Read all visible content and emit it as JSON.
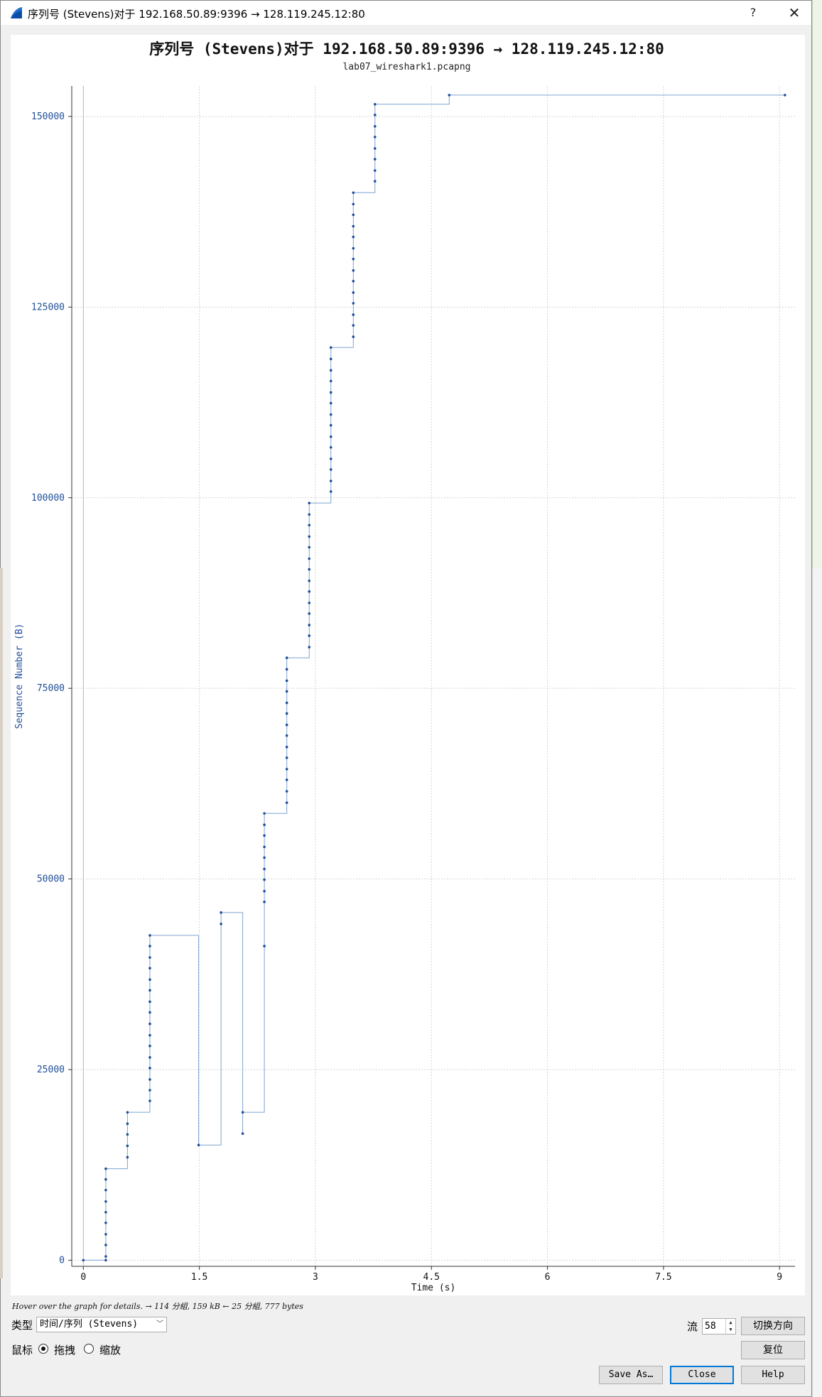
{
  "window": {
    "title": "序列号 (Stevens)对于 192.168.50.89:9396 → 128.119.245.12:80",
    "help_glyph": "?",
    "close_glyph": "✕",
    "icon": "wireshark-fin-icon"
  },
  "chart_data": {
    "type": "line",
    "title": "序列号 (Stevens)对于 192.168.50.89:9396 → 128.119.245.12:80",
    "subtitle": "lab07_wireshark1.pcapng",
    "xlabel": "Time (s)",
    "ylabel": "Sequence Number (B)",
    "xlim": [
      -0.15,
      9.2
    ],
    "ylim": [
      -800,
      154000
    ],
    "x_ticks": [
      0,
      1.5,
      3,
      4.5,
      6,
      7.5,
      9
    ],
    "x_tick_labels": [
      "0",
      "1.5",
      "3",
      "4.5",
      "6",
      "7.5",
      "9"
    ],
    "y_ticks": [
      0,
      25000,
      50000,
      75000,
      100000,
      125000,
      150000
    ],
    "y_tick_labels": [
      "0",
      "25000",
      "50000",
      "75000",
      "100000",
      "125000",
      "150000"
    ],
    "grid": true,
    "series": [
      {
        "color": "#1f4e9a",
        "line_color": "#7fa3d0",
        "style": "stevens-step",
        "points": [
          [
            0.0,
            0
          ],
          [
            0.29,
            0
          ],
          [
            0.29,
            500
          ],
          [
            0.29,
            2000
          ],
          [
            0.29,
            3400
          ],
          [
            0.29,
            4900
          ],
          [
            0.29,
            6300
          ],
          [
            0.29,
            7700
          ],
          [
            0.29,
            9200
          ],
          [
            0.29,
            10600
          ],
          [
            0.29,
            12000
          ],
          [
            0.57,
            13500
          ],
          [
            0.57,
            15000
          ],
          [
            0.57,
            16500
          ],
          [
            0.57,
            17900
          ],
          [
            0.57,
            19400
          ],
          [
            0.86,
            20900
          ],
          [
            0.86,
            22300
          ],
          [
            0.86,
            23700
          ],
          [
            0.86,
            25200
          ],
          [
            0.86,
            26600
          ],
          [
            0.86,
            28100
          ],
          [
            0.86,
            29500
          ],
          [
            0.86,
            31000
          ],
          [
            0.86,
            32500
          ],
          [
            0.86,
            33900
          ],
          [
            0.86,
            35400
          ],
          [
            0.86,
            36800
          ],
          [
            0.86,
            38300
          ],
          [
            0.86,
            39700
          ],
          [
            0.86,
            41200
          ],
          [
            0.86,
            42600
          ],
          [
            1.49,
            15100
          ],
          [
            1.78,
            44100
          ],
          [
            1.78,
            45600
          ],
          [
            2.06,
            16600
          ],
          [
            2.06,
            19400
          ],
          [
            2.34,
            41200
          ],
          [
            2.34,
            47000
          ],
          [
            2.34,
            48400
          ],
          [
            2.34,
            49900
          ],
          [
            2.34,
            51300
          ],
          [
            2.34,
            52800
          ],
          [
            2.34,
            54200
          ],
          [
            2.34,
            55700
          ],
          [
            2.34,
            57100
          ],
          [
            2.34,
            58600
          ],
          [
            2.63,
            60000
          ],
          [
            2.63,
            61500
          ],
          [
            2.63,
            63000
          ],
          [
            2.63,
            64400
          ],
          [
            2.63,
            65900
          ],
          [
            2.63,
            67300
          ],
          [
            2.63,
            68800
          ],
          [
            2.63,
            70200
          ],
          [
            2.63,
            71700
          ],
          [
            2.63,
            73100
          ],
          [
            2.63,
            74600
          ],
          [
            2.63,
            76000
          ],
          [
            2.63,
            77500
          ],
          [
            2.63,
            79000
          ],
          [
            2.92,
            80400
          ],
          [
            2.92,
            81900
          ],
          [
            2.92,
            83300
          ],
          [
            2.92,
            84800
          ],
          [
            2.92,
            86200
          ],
          [
            2.92,
            87700
          ],
          [
            2.92,
            89100
          ],
          [
            2.92,
            90600
          ],
          [
            2.92,
            92000
          ],
          [
            2.92,
            93500
          ],
          [
            2.92,
            94900
          ],
          [
            2.92,
            96400
          ],
          [
            2.92,
            97800
          ],
          [
            2.92,
            99300
          ],
          [
            3.2,
            100800
          ],
          [
            3.2,
            102200
          ],
          [
            3.2,
            103700
          ],
          [
            3.2,
            105100
          ],
          [
            3.2,
            106600
          ],
          [
            3.2,
            108000
          ],
          [
            3.2,
            109500
          ],
          [
            3.2,
            110900
          ],
          [
            3.2,
            112400
          ],
          [
            3.2,
            113800
          ],
          [
            3.2,
            115300
          ],
          [
            3.2,
            116700
          ],
          [
            3.2,
            118200
          ],
          [
            3.2,
            119700
          ],
          [
            3.49,
            121100
          ],
          [
            3.49,
            122600
          ],
          [
            3.49,
            124000
          ],
          [
            3.49,
            125500
          ],
          [
            3.49,
            126900
          ],
          [
            3.49,
            128400
          ],
          [
            3.49,
            129800
          ],
          [
            3.49,
            131300
          ],
          [
            3.49,
            132700
          ],
          [
            3.49,
            134200
          ],
          [
            3.49,
            135600
          ],
          [
            3.49,
            137100
          ],
          [
            3.49,
            138500
          ],
          [
            3.49,
            140000
          ],
          [
            3.77,
            141500
          ],
          [
            3.77,
            142900
          ],
          [
            3.77,
            144400
          ],
          [
            3.77,
            145800
          ],
          [
            3.77,
            147300
          ],
          [
            3.77,
            148700
          ],
          [
            3.77,
            150200
          ],
          [
            3.77,
            151600
          ],
          [
            4.73,
            152800
          ],
          [
            9.07,
            152800
          ]
        ]
      }
    ]
  },
  "status": {
    "hint": "Hover over the graph for details. → 114 分組, 159 kB ← 25 分組, 777 bytes"
  },
  "controls": {
    "type_label": "类型",
    "type_value": "时间/序列 (Stevens)",
    "mouse_label": "鼠标",
    "drag_label": "拖拽",
    "zoom_label": "缩放",
    "drag_selected": true,
    "stream_label": "流",
    "stream_value": "58",
    "switch_direction": "切换方向",
    "reset": "复位",
    "save_as": "Save As…",
    "close": "Close",
    "help": "Help"
  }
}
